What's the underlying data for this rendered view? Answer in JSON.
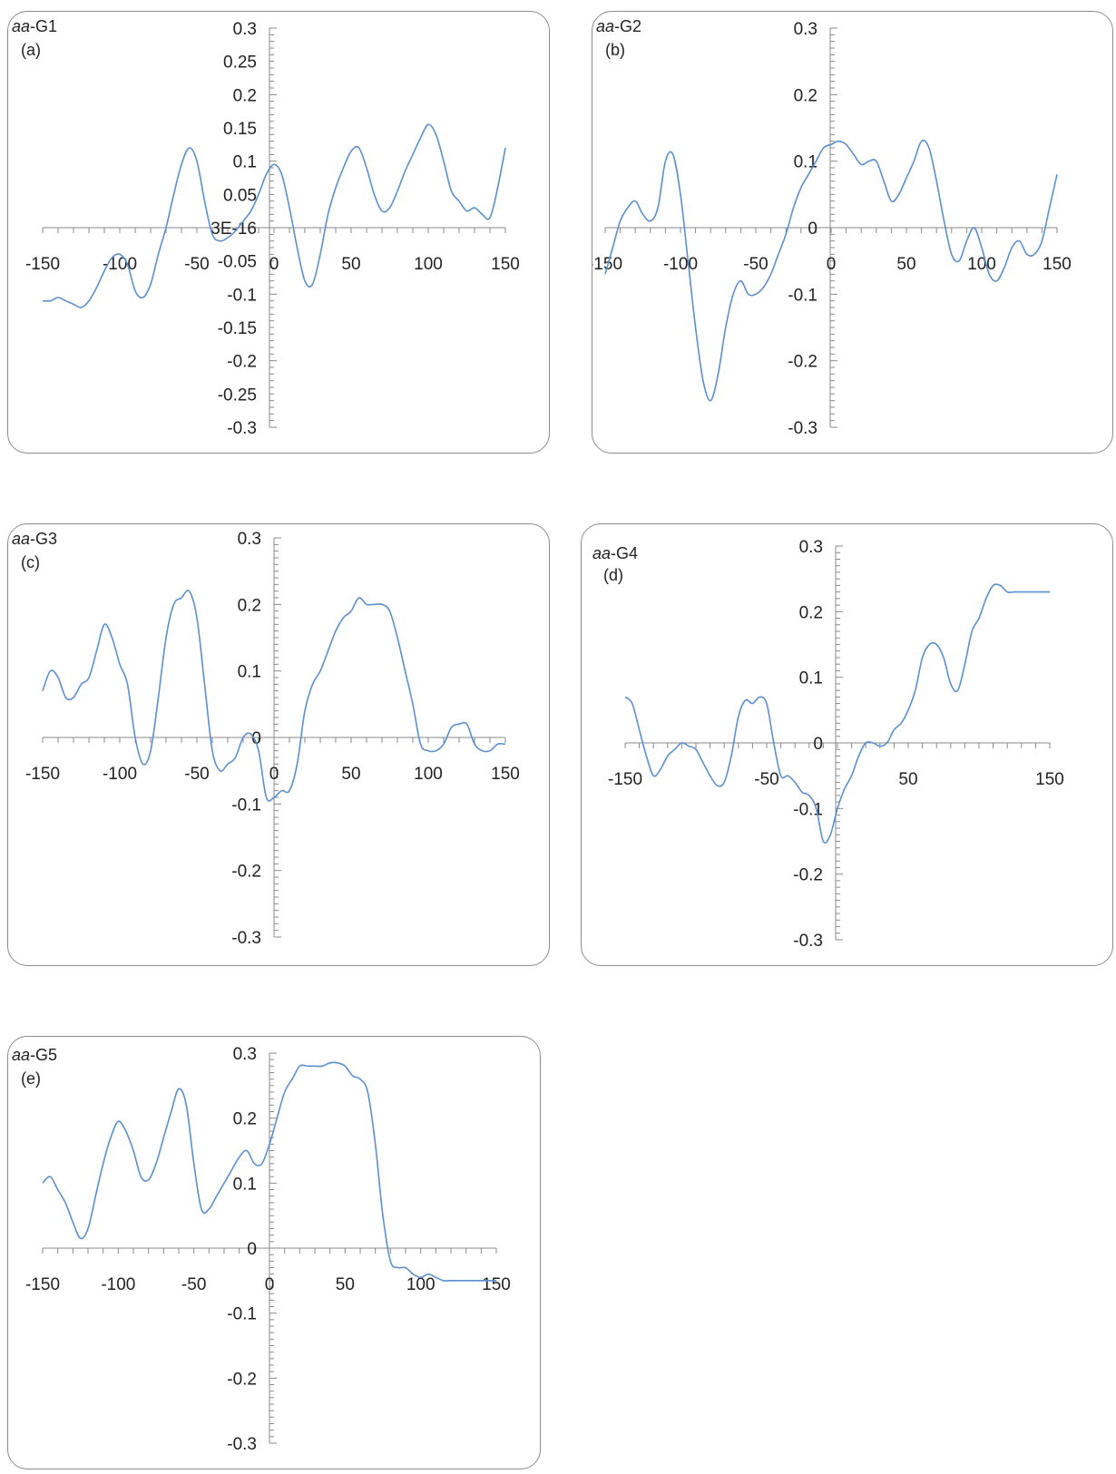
{
  "chart_data": [
    {
      "type": "line",
      "group_label": "G1",
      "group_prefix": "aa",
      "panel_label": "(a)",
      "xlim": [
        -150,
        150
      ],
      "ylim": [
        -0.3,
        0.3
      ],
      "x_ticks": [
        "-150",
        "-100",
        "-50",
        "0",
        "50",
        "100",
        "150"
      ],
      "y_ticks": [
        "0.3",
        "0.25",
        "0.2",
        "0.15",
        "0.1",
        "0.05",
        "3E-16",
        "-0.05",
        "-0.1",
        "-0.15",
        "-0.2",
        "-0.25",
        "-0.3"
      ],
      "color": "#5b8fd0",
      "x": [
        -150,
        -145,
        -140,
        -135,
        -130,
        -125,
        -120,
        -115,
        -110,
        -105,
        -100,
        -95,
        -90,
        -85,
        -80,
        -75,
        -70,
        -65,
        -60,
        -55,
        -50,
        -45,
        -40,
        -35,
        -30,
        -25,
        -20,
        -15,
        -10,
        -5,
        0,
        5,
        10,
        15,
        20,
        25,
        30,
        35,
        40,
        45,
        50,
        55,
        60,
        65,
        70,
        75,
        80,
        85,
        90,
        95,
        100,
        105,
        110,
        115,
        120,
        125,
        130,
        135,
        140,
        145,
        150
      ],
      "values": [
        -0.11,
        -0.11,
        -0.105,
        -0.11,
        -0.115,
        -0.12,
        -0.11,
        -0.09,
        -0.065,
        -0.045,
        -0.04,
        -0.055,
        -0.095,
        -0.105,
        -0.085,
        -0.04,
        0.0,
        0.05,
        0.095,
        0.12,
        0.1,
        0.04,
        -0.01,
        -0.02,
        -0.015,
        -0.005,
        0.01,
        0.025,
        0.05,
        0.08,
        0.095,
        0.08,
        0.03,
        -0.03,
        -0.08,
        -0.085,
        -0.04,
        0.02,
        0.06,
        0.09,
        0.115,
        0.12,
        0.09,
        0.05,
        0.025,
        0.03,
        0.055,
        0.085,
        0.11,
        0.135,
        0.155,
        0.14,
        0.1,
        0.055,
        0.04,
        0.025,
        0.03,
        0.02,
        0.015,
        0.06,
        0.12
      ]
    },
    {
      "type": "line",
      "group_label": "G2",
      "group_prefix": "aa",
      "panel_label": "(b)",
      "xlim": [
        -150,
        150
      ],
      "ylim": [
        -0.3,
        0.3
      ],
      "x_ticks": [
        "-150",
        "-100",
        "-50",
        "0",
        "50",
        "100",
        "150"
      ],
      "y_ticks": [
        "0.3",
        "0.2",
        "0.1",
        "0",
        "-0.1",
        "-0.2",
        "-0.3"
      ],
      "color": "#5b8fd0",
      "x": [
        -150,
        -145,
        -140,
        -135,
        -130,
        -125,
        -120,
        -115,
        -110,
        -105,
        -100,
        -95,
        -90,
        -85,
        -80,
        -75,
        -70,
        -65,
        -60,
        -55,
        -50,
        -45,
        -40,
        -35,
        -30,
        -25,
        -20,
        -15,
        -10,
        -5,
        0,
        5,
        10,
        15,
        20,
        25,
        30,
        35,
        40,
        45,
        50,
        55,
        60,
        65,
        70,
        75,
        80,
        85,
        90,
        95,
        100,
        105,
        110,
        115,
        120,
        125,
        130,
        135,
        140,
        145,
        150
      ],
      "values": [
        -0.07,
        -0.03,
        0.01,
        0.03,
        0.04,
        0.02,
        0.01,
        0.03,
        0.1,
        0.11,
        0.05,
        -0.05,
        -0.15,
        -0.23,
        -0.26,
        -0.22,
        -0.15,
        -0.1,
        -0.08,
        -0.1,
        -0.1,
        -0.09,
        -0.07,
        -0.04,
        -0.01,
        0.03,
        0.06,
        0.08,
        0.1,
        0.12,
        0.125,
        0.13,
        0.125,
        0.11,
        0.095,
        0.1,
        0.1,
        0.07,
        0.04,
        0.05,
        0.075,
        0.1,
        0.13,
        0.12,
        0.07,
        0.01,
        -0.04,
        -0.05,
        -0.02,
        0.0,
        -0.03,
        -0.07,
        -0.08,
        -0.06,
        -0.03,
        -0.02,
        -0.04,
        -0.04,
        -0.02,
        0.03,
        0.08
      ]
    },
    {
      "type": "line",
      "group_label": "G3",
      "group_prefix": "aa",
      "panel_label": "(c)",
      "xlim": [
        -150,
        150
      ],
      "ylim": [
        -0.3,
        0.3
      ],
      "x_ticks": [
        "-150",
        "-100",
        "-50",
        "0",
        "50",
        "100",
        "150"
      ],
      "y_ticks": [
        "0.3",
        "0.2",
        "0.1",
        "0",
        "-0.1",
        "-0.2",
        "-0.3"
      ],
      "color": "#5b8fd0",
      "x": [
        -150,
        -145,
        -140,
        -135,
        -130,
        -125,
        -120,
        -115,
        -110,
        -105,
        -100,
        -95,
        -90,
        -85,
        -80,
        -75,
        -70,
        -65,
        -60,
        -55,
        -50,
        -45,
        -40,
        -35,
        -30,
        -25,
        -20,
        -15,
        -10,
        -5,
        0,
        5,
        10,
        15,
        20,
        25,
        30,
        35,
        40,
        45,
        50,
        55,
        60,
        65,
        70,
        75,
        80,
        85,
        90,
        95,
        100,
        105,
        110,
        115,
        120,
        125,
        130,
        135,
        140,
        145,
        150
      ],
      "values": [
        0.07,
        0.1,
        0.09,
        0.06,
        0.06,
        0.08,
        0.09,
        0.13,
        0.17,
        0.15,
        0.11,
        0.08,
        0.0,
        -0.04,
        -0.02,
        0.06,
        0.15,
        0.2,
        0.21,
        0.22,
        0.18,
        0.08,
        -0.02,
        -0.05,
        -0.04,
        -0.03,
        0.0,
        0.005,
        -0.02,
        -0.09,
        -0.09,
        -0.08,
        -0.08,
        -0.04,
        0.04,
        0.08,
        0.1,
        0.13,
        0.16,
        0.18,
        0.19,
        0.21,
        0.2,
        0.2,
        0.2,
        0.19,
        0.15,
        0.1,
        0.05,
        -0.01,
        -0.02,
        -0.02,
        -0.01,
        0.015,
        0.02,
        0.02,
        -0.01,
        -0.02,
        -0.02,
        -0.01,
        -0.01
      ]
    },
    {
      "type": "line",
      "group_label": "G4",
      "group_prefix": "aa",
      "panel_label": "(d)",
      "xlim": [
        -150,
        150
      ],
      "ylim": [
        -0.3,
        0.3
      ],
      "x_ticks": [
        "-150",
        "-50",
        "50",
        "150"
      ],
      "y_ticks": [
        "0.3",
        "0.2",
        "0.1",
        "0",
        "-0.1",
        "-0.2",
        "-0.3"
      ],
      "color": "#5b8fd0",
      "x": [
        -150,
        -145,
        -140,
        -135,
        -130,
        -125,
        -120,
        -115,
        -110,
        -105,
        -100,
        -95,
        -90,
        -85,
        -80,
        -75,
        -70,
        -65,
        -60,
        -55,
        -50,
        -45,
        -40,
        -35,
        -30,
        -25,
        -20,
        -15,
        -10,
        -5,
        0,
        5,
        10,
        15,
        20,
        25,
        30,
        35,
        40,
        45,
        50,
        55,
        60,
        65,
        70,
        75,
        80,
        85,
        90,
        95,
        100,
        105,
        110,
        115,
        120,
        125,
        130,
        135,
        140,
        145,
        150
      ],
      "values": [
        0.07,
        0.06,
        0.02,
        -0.02,
        -0.05,
        -0.04,
        -0.02,
        -0.01,
        0.0,
        -0.005,
        -0.01,
        -0.03,
        -0.05,
        -0.065,
        -0.06,
        -0.02,
        0.04,
        0.065,
        0.06,
        0.07,
        0.06,
        0.0,
        -0.05,
        -0.05,
        -0.06,
        -0.075,
        -0.08,
        -0.1,
        -0.15,
        -0.14,
        -0.1,
        -0.07,
        -0.05,
        -0.02,
        0.0,
        0.0,
        -0.005,
        0.0,
        0.02,
        0.03,
        0.05,
        0.08,
        0.13,
        0.15,
        0.15,
        0.13,
        0.09,
        0.08,
        0.12,
        0.17,
        0.19,
        0.22,
        0.24,
        0.24,
        0.23,
        0.23,
        0.23,
        0.23,
        0.23,
        0.23,
        0.23
      ]
    },
    {
      "type": "line",
      "group_label": "G5",
      "group_prefix": "aa",
      "panel_label": "(e)",
      "xlim": [
        -150,
        150
      ],
      "ylim": [
        -0.3,
        0.3
      ],
      "x_ticks": [
        "-150",
        "-100",
        "-50",
        "0",
        "50",
        "100",
        "150"
      ],
      "y_ticks": [
        "0.3",
        "0.2",
        "0.1",
        "0",
        "-0.1",
        "-0.2",
        "-0.3"
      ],
      "color": "#5b8fd0",
      "x": [
        -150,
        -145,
        -140,
        -135,
        -130,
        -125,
        -120,
        -115,
        -110,
        -105,
        -100,
        -95,
        -90,
        -85,
        -80,
        -75,
        -70,
        -65,
        -60,
        -55,
        -50,
        -45,
        -40,
        -35,
        -30,
        -25,
        -20,
        -15,
        -10,
        -5,
        0,
        5,
        10,
        15,
        20,
        25,
        30,
        35,
        40,
        45,
        50,
        55,
        60,
        65,
        70,
        75,
        80,
        85,
        90,
        95,
        100,
        105,
        110,
        115,
        120,
        125,
        130,
        135,
        140,
        145,
        150
      ],
      "values": [
        0.1,
        0.11,
        0.09,
        0.07,
        0.04,
        0.015,
        0.03,
        0.08,
        0.13,
        0.17,
        0.195,
        0.18,
        0.15,
        0.11,
        0.105,
        0.13,
        0.17,
        0.21,
        0.245,
        0.22,
        0.13,
        0.06,
        0.06,
        0.08,
        0.1,
        0.12,
        0.14,
        0.15,
        0.13,
        0.13,
        0.16,
        0.2,
        0.24,
        0.26,
        0.28,
        0.28,
        0.28,
        0.28,
        0.285,
        0.285,
        0.28,
        0.265,
        0.26,
        0.24,
        0.16,
        0.05,
        -0.02,
        -0.03,
        -0.03,
        -0.04,
        -0.045,
        -0.04,
        -0.045,
        -0.05,
        -0.05,
        -0.05,
        -0.05,
        -0.05,
        -0.05,
        -0.05,
        -0.05
      ]
    }
  ]
}
